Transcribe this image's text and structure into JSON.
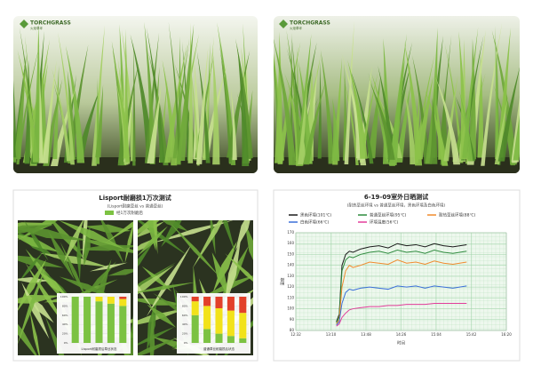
{
  "photos": [
    {
      "logo": "TORCHGRASS",
      "logo_sub": "火炬草坪"
    },
    {
      "logo": "TORCHGRASS",
      "logo_sub": "火炬草坪"
    }
  ],
  "wear_test": {
    "title": "Lisport耐磨损1万次测试",
    "subtitle": "(Lisport耐磨草丝 vs 普通草丝)",
    "legend": "经1万次耐磨后",
    "charts": [
      {
        "type": "bar",
        "xlabel": "Lisport耐磨损后草丝状态",
        "categories": [
          null,
          null,
          null,
          null,
          null
        ],
        "ylim": [
          0,
          100
        ],
        "yticks": [
          {
            "value": 0,
            "label": "0%"
          },
          {
            "value": 20,
            "label": "20%"
          },
          {
            "value": 40,
            "label": "40%"
          },
          {
            "value": 60,
            "label": "60%"
          },
          {
            "value": 80,
            "label": "80%"
          },
          {
            "value": 100,
            "label": "100%"
          }
        ],
        "series": [
          {
            "color": "#7cc242",
            "values": [
              100,
              100,
              90,
              85,
              80
            ]
          },
          {
            "color": "#f2e21b",
            "values": [
              0,
              0,
              10,
              15,
              15
            ]
          },
          {
            "color": "#e2402a",
            "values": [
              0,
              0,
              0,
              0,
              5
            ]
          }
        ]
      },
      {
        "type": "bar",
        "xlabel": "普通草丝耐磨损后状态",
        "categories": [
          null,
          null,
          null,
          null,
          null
        ],
        "ylim": [
          0,
          100
        ],
        "yticks": [
          {
            "value": 0,
            "label": "0%"
          },
          {
            "value": 20,
            "label": "20%"
          },
          {
            "value": 40,
            "label": "40%"
          },
          {
            "value": 60,
            "label": "60%"
          },
          {
            "value": 80,
            "label": "80%"
          },
          {
            "value": 100,
            "label": "100%"
          }
        ],
        "series": [
          {
            "color": "#7cc242",
            "values": [
              60,
              30,
              20,
              15,
              10
            ]
          },
          {
            "color": "#f2e21b",
            "values": [
              30,
              50,
              55,
              55,
              55
            ]
          },
          {
            "color": "#e2402a",
            "values": [
              10,
              20,
              25,
              30,
              35
            ]
          }
        ]
      }
    ]
  },
  "chart_data": {
    "type": "line",
    "title": "6-19-09室外日晒测试",
    "subtitle": "(耐热草丝环境 vs 普通草丝环境，黑色环境及白色环境)",
    "xlabel": "时间",
    "ylabel": "温度",
    "x": [
      44,
      47,
      50,
      54,
      58,
      62,
      70,
      80,
      90,
      100,
      110,
      120,
      130,
      140,
      150,
      160,
      170,
      185
    ],
    "xlim": [
      0,
      228
    ],
    "xticks": [
      {
        "value": 0,
        "label": "12:32"
      },
      {
        "value": 38,
        "label": "13:10"
      },
      {
        "value": 76,
        "label": "13:48"
      },
      {
        "value": 114,
        "label": "14:26"
      },
      {
        "value": 152,
        "label": "15:04"
      },
      {
        "value": 190,
        "label": "15:42"
      },
      {
        "value": 228,
        "label": "16:20"
      }
    ],
    "ylim": [
      80,
      170
    ],
    "yticks": [
      80,
      90,
      100,
      110,
      120,
      130,
      140,
      150,
      160,
      170
    ],
    "grid": true,
    "series": [
      {
        "name": "黑色环境(101℃)",
        "color": "#1a1a1a",
        "values": [
          88,
          95,
          140,
          150,
          153,
          152,
          155,
          157,
          158,
          156,
          160,
          158,
          159,
          157,
          160,
          158,
          157,
          159
        ]
      },
      {
        "name": "普通草丝环境(95℃)",
        "color": "#2e8b3e",
        "values": [
          87,
          93,
          135,
          145,
          148,
          147,
          150,
          152,
          153,
          151,
          154,
          152,
          153,
          151,
          154,
          152,
          151,
          153
        ]
      },
      {
        "name": "耐热草丝环境(88℃)",
        "color": "#f08a2c",
        "values": [
          86,
          90,
          120,
          135,
          140,
          138,
          140,
          143,
          142,
          141,
          145,
          142,
          143,
          141,
          144,
          142,
          141,
          143
        ]
      },
      {
        "name": "白色环境(66℃)",
        "color": "#3a6fd8",
        "values": [
          85,
          88,
          105,
          115,
          118,
          117,
          119,
          120,
          119,
          118,
          121,
          120,
          121,
          119,
          121,
          120,
          119,
          121
        ]
      },
      {
        "name": "环境温度(56℃)",
        "color": "#e23d9a",
        "values": [
          84,
          86,
          92,
          96,
          99,
          100,
          101,
          102,
          102,
          103,
          103,
          104,
          104,
          104,
          105,
          105,
          105,
          105
        ]
      }
    ]
  }
}
